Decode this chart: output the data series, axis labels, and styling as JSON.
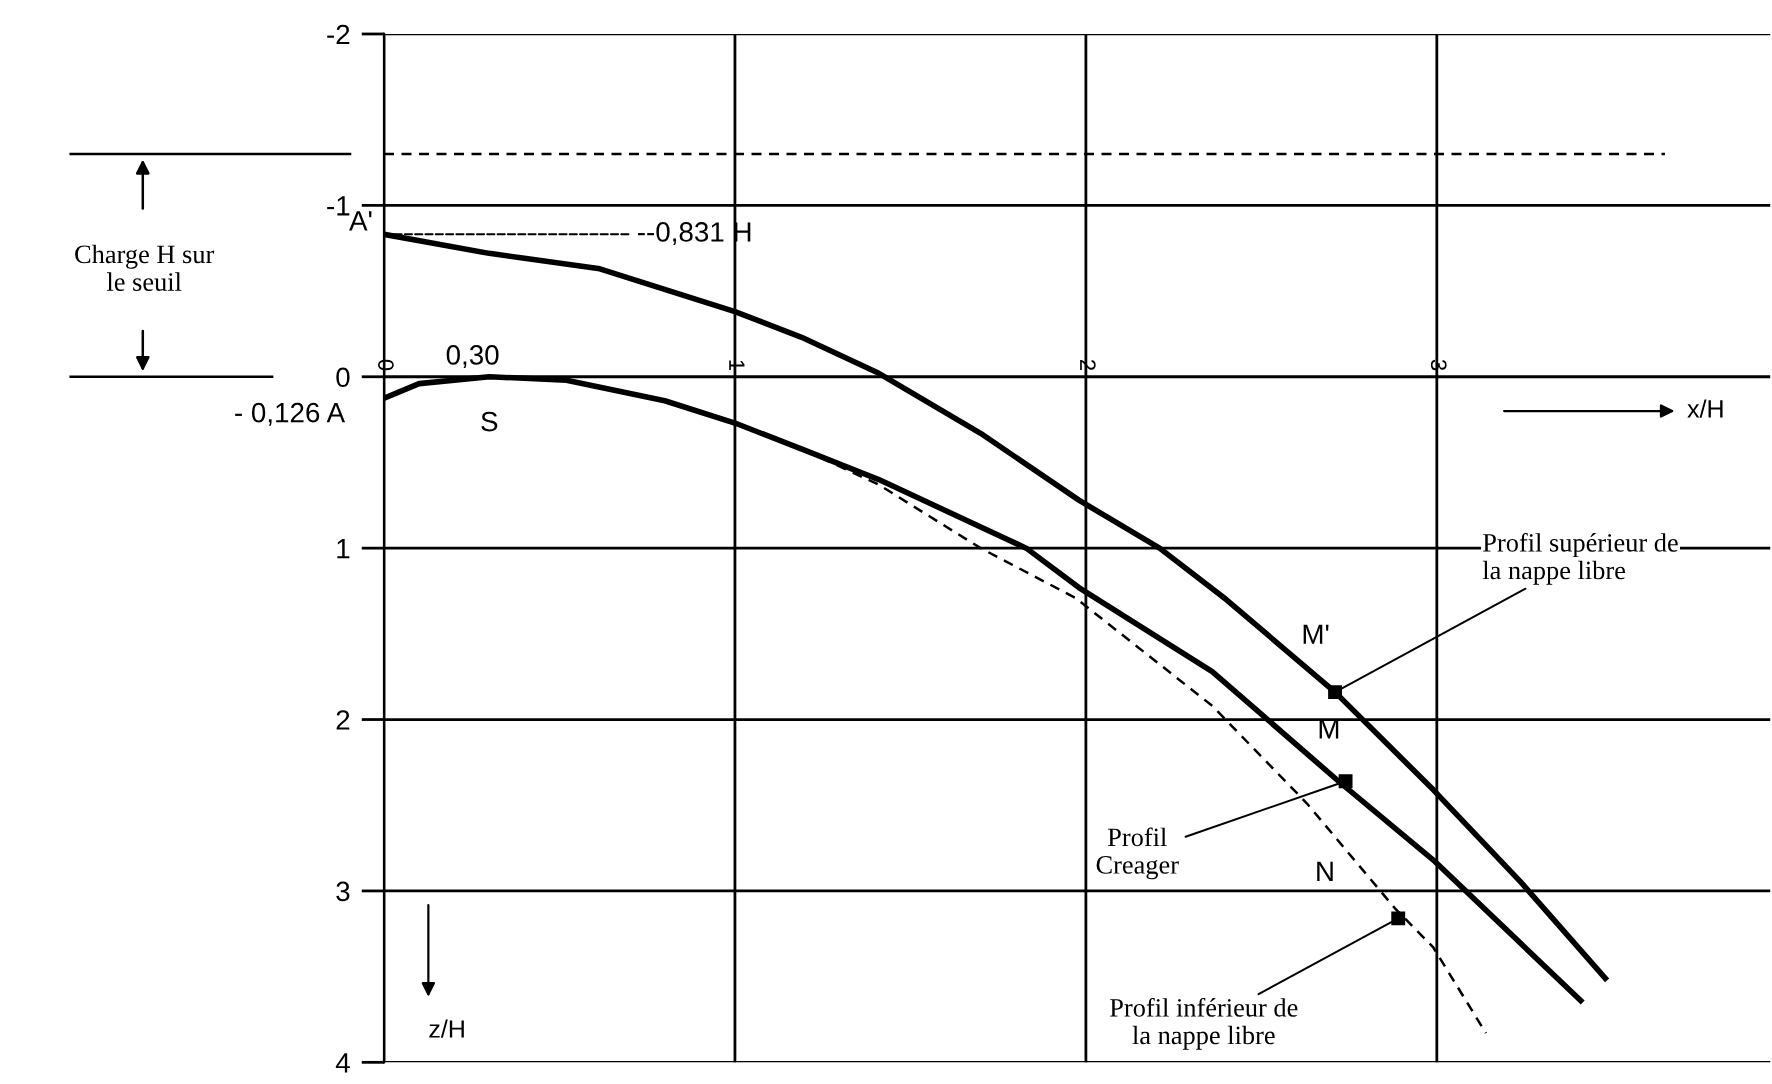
{
  "chart_data": {
    "type": "line",
    "xlabel": "x/H",
    "ylabel": "z/H",
    "series": [
      {
        "color": "#000000",
        "line_style": "solid",
        "x": [
          0,
          0.3,
          0.615,
          1.0,
          1.19,
          1.41,
          1.7,
          1.98,
          2.21,
          2.4,
          2.71,
          2.99,
          3.24,
          3.48
        ],
        "values": [
          -0.831,
          -0.72,
          -0.63,
          -0.38,
          -0.23,
          -0.02,
          0.33,
          0.72,
          1.0,
          1.3,
          1.84,
          2.41,
          2.95,
          3.51
        ]
      },
      {
        "color": "#000000",
        "line_style": "solid",
        "x": [
          0,
          0.1,
          0.3,
          0.52,
          0.8,
          1.0,
          1.2,
          1.41,
          1.83,
          1.98,
          2.36,
          2.72,
          2.99,
          3.41
        ],
        "values": [
          0.126,
          0.04,
          0,
          0.02,
          0.14,
          0.27,
          0.43,
          0.6,
          1.0,
          1.23,
          1.72,
          2.36,
          2.82,
          3.64
        ]
      },
      {
        "color": "#000000",
        "line_style": "dashed",
        "x": [
          1.2,
          1.41,
          1.7,
          1.97,
          2.36,
          2.63,
          2.88,
          2.99,
          3.14
        ],
        "values": [
          0.43,
          0.63,
          1.0,
          1.29,
          1.92,
          2.49,
          3.1,
          3.33,
          3.83
        ]
      },
      {
        "color": "#000000",
        "line_style": "dashed",
        "x": [
          0,
          3.65
        ],
        "values": [
          -1.3,
          -1.3
        ]
      }
    ],
    "annotations": [
      {
        "text": "A'",
        "x": 0,
        "y": -0.831
      },
      {
        "text": "--0,831 H",
        "x": 0,
        "y": -0.831
      },
      {
        "text": "0,30",
        "x": 0.3,
        "y": 0
      },
      {
        "text": "S",
        "x": 0.3,
        "y": 0
      },
      {
        "text": "- 0,126 A",
        "x": 0,
        "y": 0.126
      },
      {
        "text": "M'",
        "x": 2.71,
        "y": 1.84
      },
      {
        "text": "M",
        "x": 2.74,
        "y": 2.36
      },
      {
        "text": "N",
        "x": 2.8,
        "y": 2.9
      },
      {
        "text": "Profil supérieur de\nla nappe libre",
        "x": 2.71,
        "y": 1.84
      },
      {
        "text": "Profil\nCreager",
        "x": 2.74,
        "y": 2.36
      },
      {
        "text": "Profil inférieur de\nla nappe libre",
        "x": 2.89,
        "y": 3.16
      },
      "Charge H sur\nle seuil"
    ],
    "xlim": [
      0,
      3.95
    ],
    "ylim": [
      4,
      -2
    ],
    "xticks": [
      0,
      1,
      2,
      3
    ],
    "yticks": [
      -2,
      -1,
      0,
      1,
      2,
      3,
      4
    ],
    "grid": true,
    "legend": false,
    "marker": "none"
  }
}
